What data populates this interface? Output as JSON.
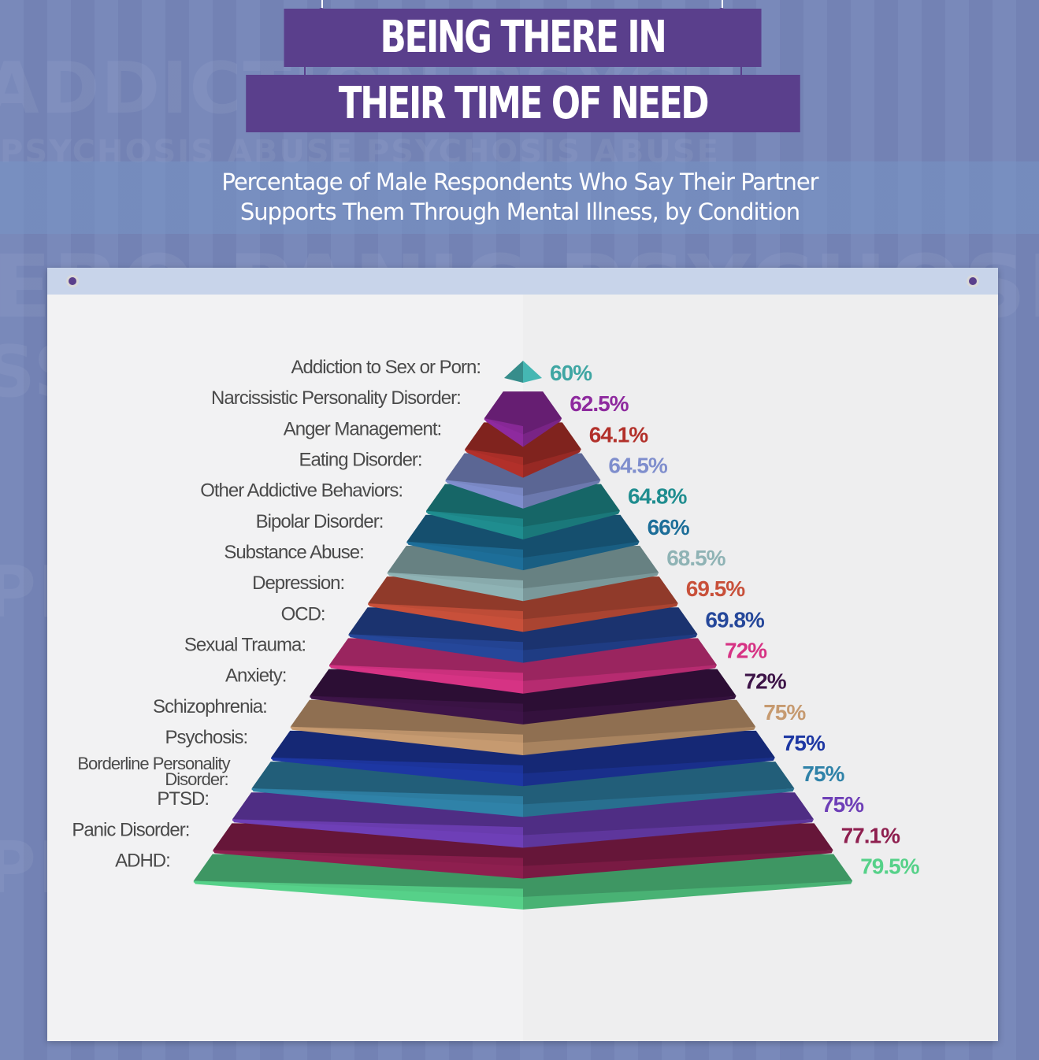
{
  "header": {
    "title_line1": "Being There in",
    "title_line2": "Their Time of Need",
    "subtitle_line1": "Percentage of Male Respondents Who Say Their Partner",
    "subtitle_line2": "Supports Them Through Mental Illness, by Condition"
  },
  "chart_data": {
    "type": "pyramid",
    "title": "Being There in Their Time of Need",
    "subtitle": "Percentage of Male Respondents Who Say Their Partner Supports Them Through Mental Illness, by Condition",
    "unit": "%",
    "categories": [
      "Addiction to Sex or Porn:",
      "Narcissistic Personality Disorder:",
      "Anger Management:",
      "Eating Disorder:",
      "Other Addictive Behaviors:",
      "Bipolar Disorder:",
      "Substance Abuse:",
      "Depression:",
      "OCD:",
      "Sexual Trauma:",
      "Anxiety:",
      "Schizophrenia:",
      "Psychosis:",
      "Borderline Personality Disorder:",
      "PTSD:",
      "Panic Disorder:",
      "ADHD:"
    ],
    "values": [
      60,
      62.5,
      64.1,
      64.5,
      64.8,
      66,
      68.5,
      69.5,
      69.8,
      72,
      72,
      75,
      75,
      75,
      75,
      77.1,
      79.5
    ],
    "value_labels": [
      "60%",
      "62.5%",
      "64.1%",
      "64.5%",
      "64.8%",
      "66%",
      "68.5%",
      "69.5%",
      "69.8%",
      "72%",
      "72%",
      "75%",
      "75%",
      "75%",
      "75%",
      "77.1%",
      "79.5%"
    ],
    "colors": [
      "#3fa6a3",
      "#8e2a9e",
      "#b2302a",
      "#7f8ecd",
      "#1f8d8f",
      "#1d6e99",
      "#8fb3b5",
      "#c8503a",
      "#25479a",
      "#d63384",
      "#3d1448",
      "#c69a70",
      "#1d37a3",
      "#2f82a8",
      "#6e3fb7",
      "#8e1f4f",
      "#56d189"
    ],
    "label_color": "#4a4a4a"
  }
}
